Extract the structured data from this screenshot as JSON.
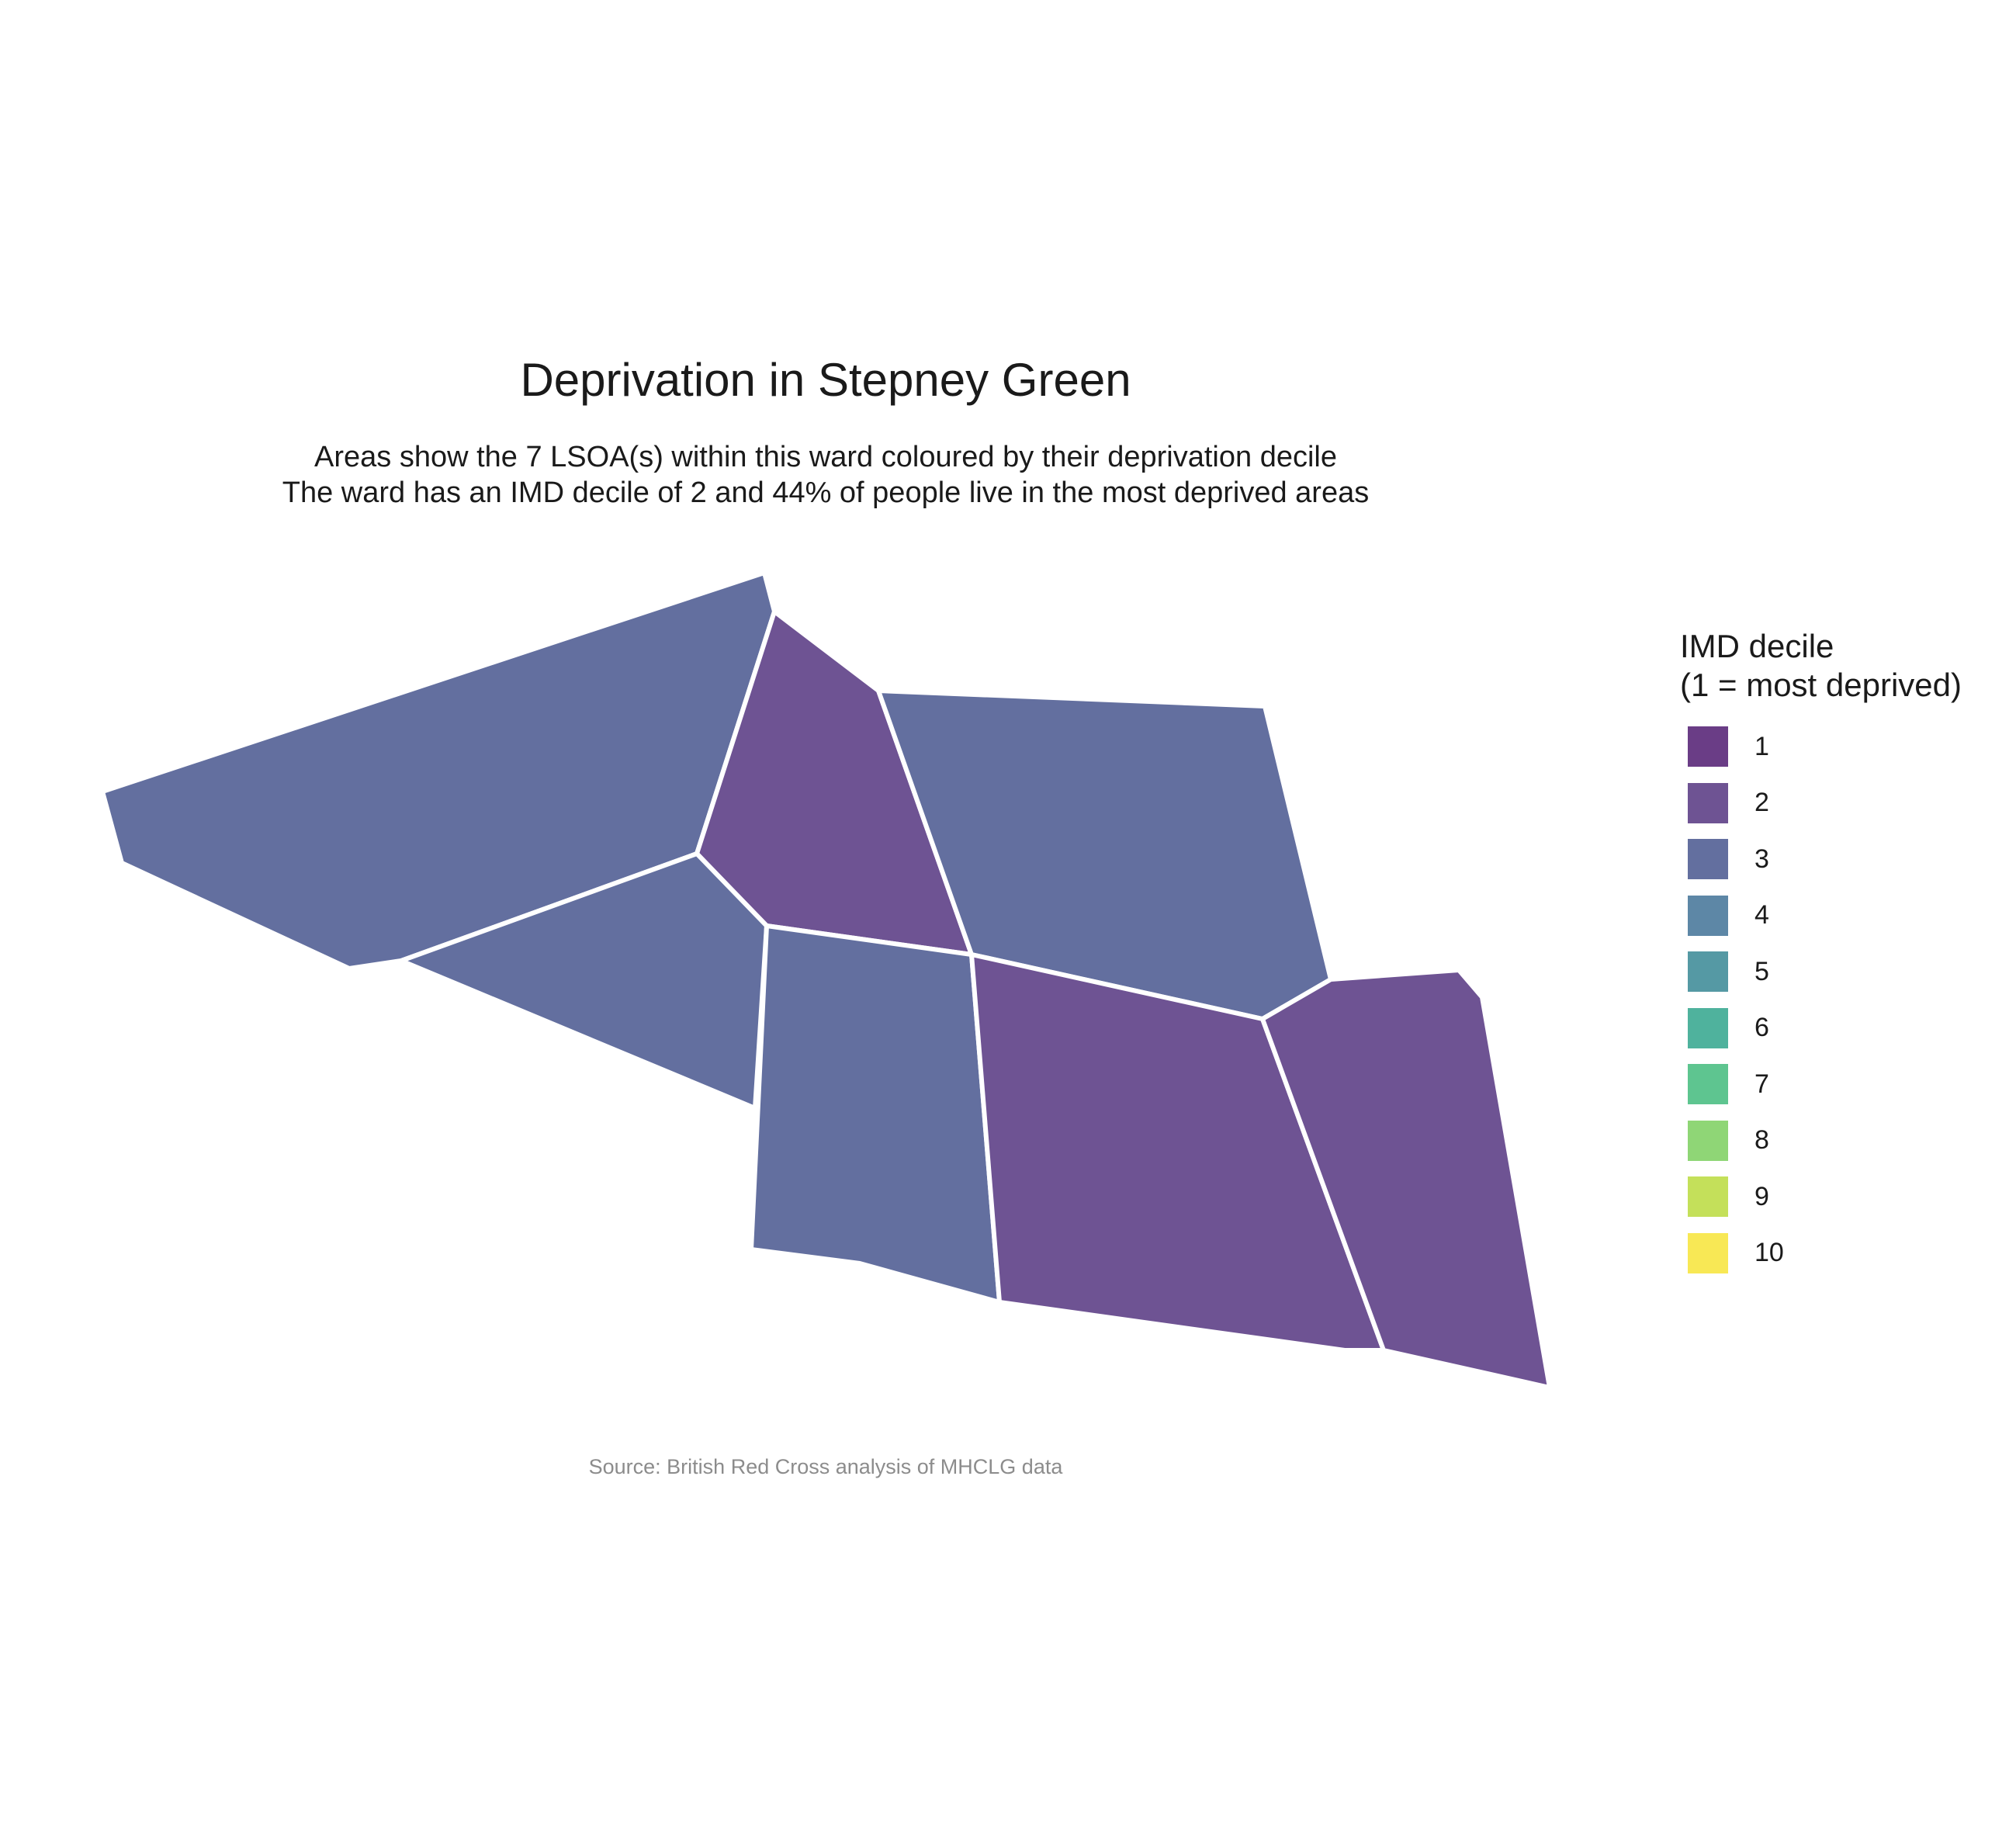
{
  "title": "Deprivation in Stepney Green",
  "subtitle_line1": "Areas show the 7 LSOA(s) within this ward coloured by their deprivation decile",
  "subtitle_line2": "The ward has an IMD decile of 2 and 44% of people live in the most deprived areas",
  "caption": "Source: British Red Cross analysis of MHCLG data",
  "legend": {
    "title_line1": "IMD decile",
    "title_line2": "(1 = most deprived)",
    "items": [
      {
        "label": "1",
        "color": "#6a3d86"
      },
      {
        "label": "2",
        "color": "#6e5393"
      },
      {
        "label": "3",
        "color": "#636f9f"
      },
      {
        "label": "4",
        "color": "#5d87a6"
      },
      {
        "label": "5",
        "color": "#5599a4"
      },
      {
        "label": "6",
        "color": "#4fb29d"
      },
      {
        "label": "7",
        "color": "#5ec590"
      },
      {
        "label": "8",
        "color": "#8fd676"
      },
      {
        "label": "9",
        "color": "#c4e05a"
      },
      {
        "label": "10",
        "color": "#f8e855"
      }
    ]
  },
  "map_data": {
    "areas": [
      {
        "id": "lsoa-northwest",
        "decile": 3
      },
      {
        "id": "lsoa-north-central",
        "decile": 2
      },
      {
        "id": "lsoa-northeast",
        "decile": 3
      },
      {
        "id": "lsoa-west-middle",
        "decile": 3
      },
      {
        "id": "lsoa-south-central",
        "decile": 3
      },
      {
        "id": "lsoa-southeast",
        "decile": 2
      },
      {
        "id": "lsoa-east",
        "decile": 2
      }
    ]
  }
}
